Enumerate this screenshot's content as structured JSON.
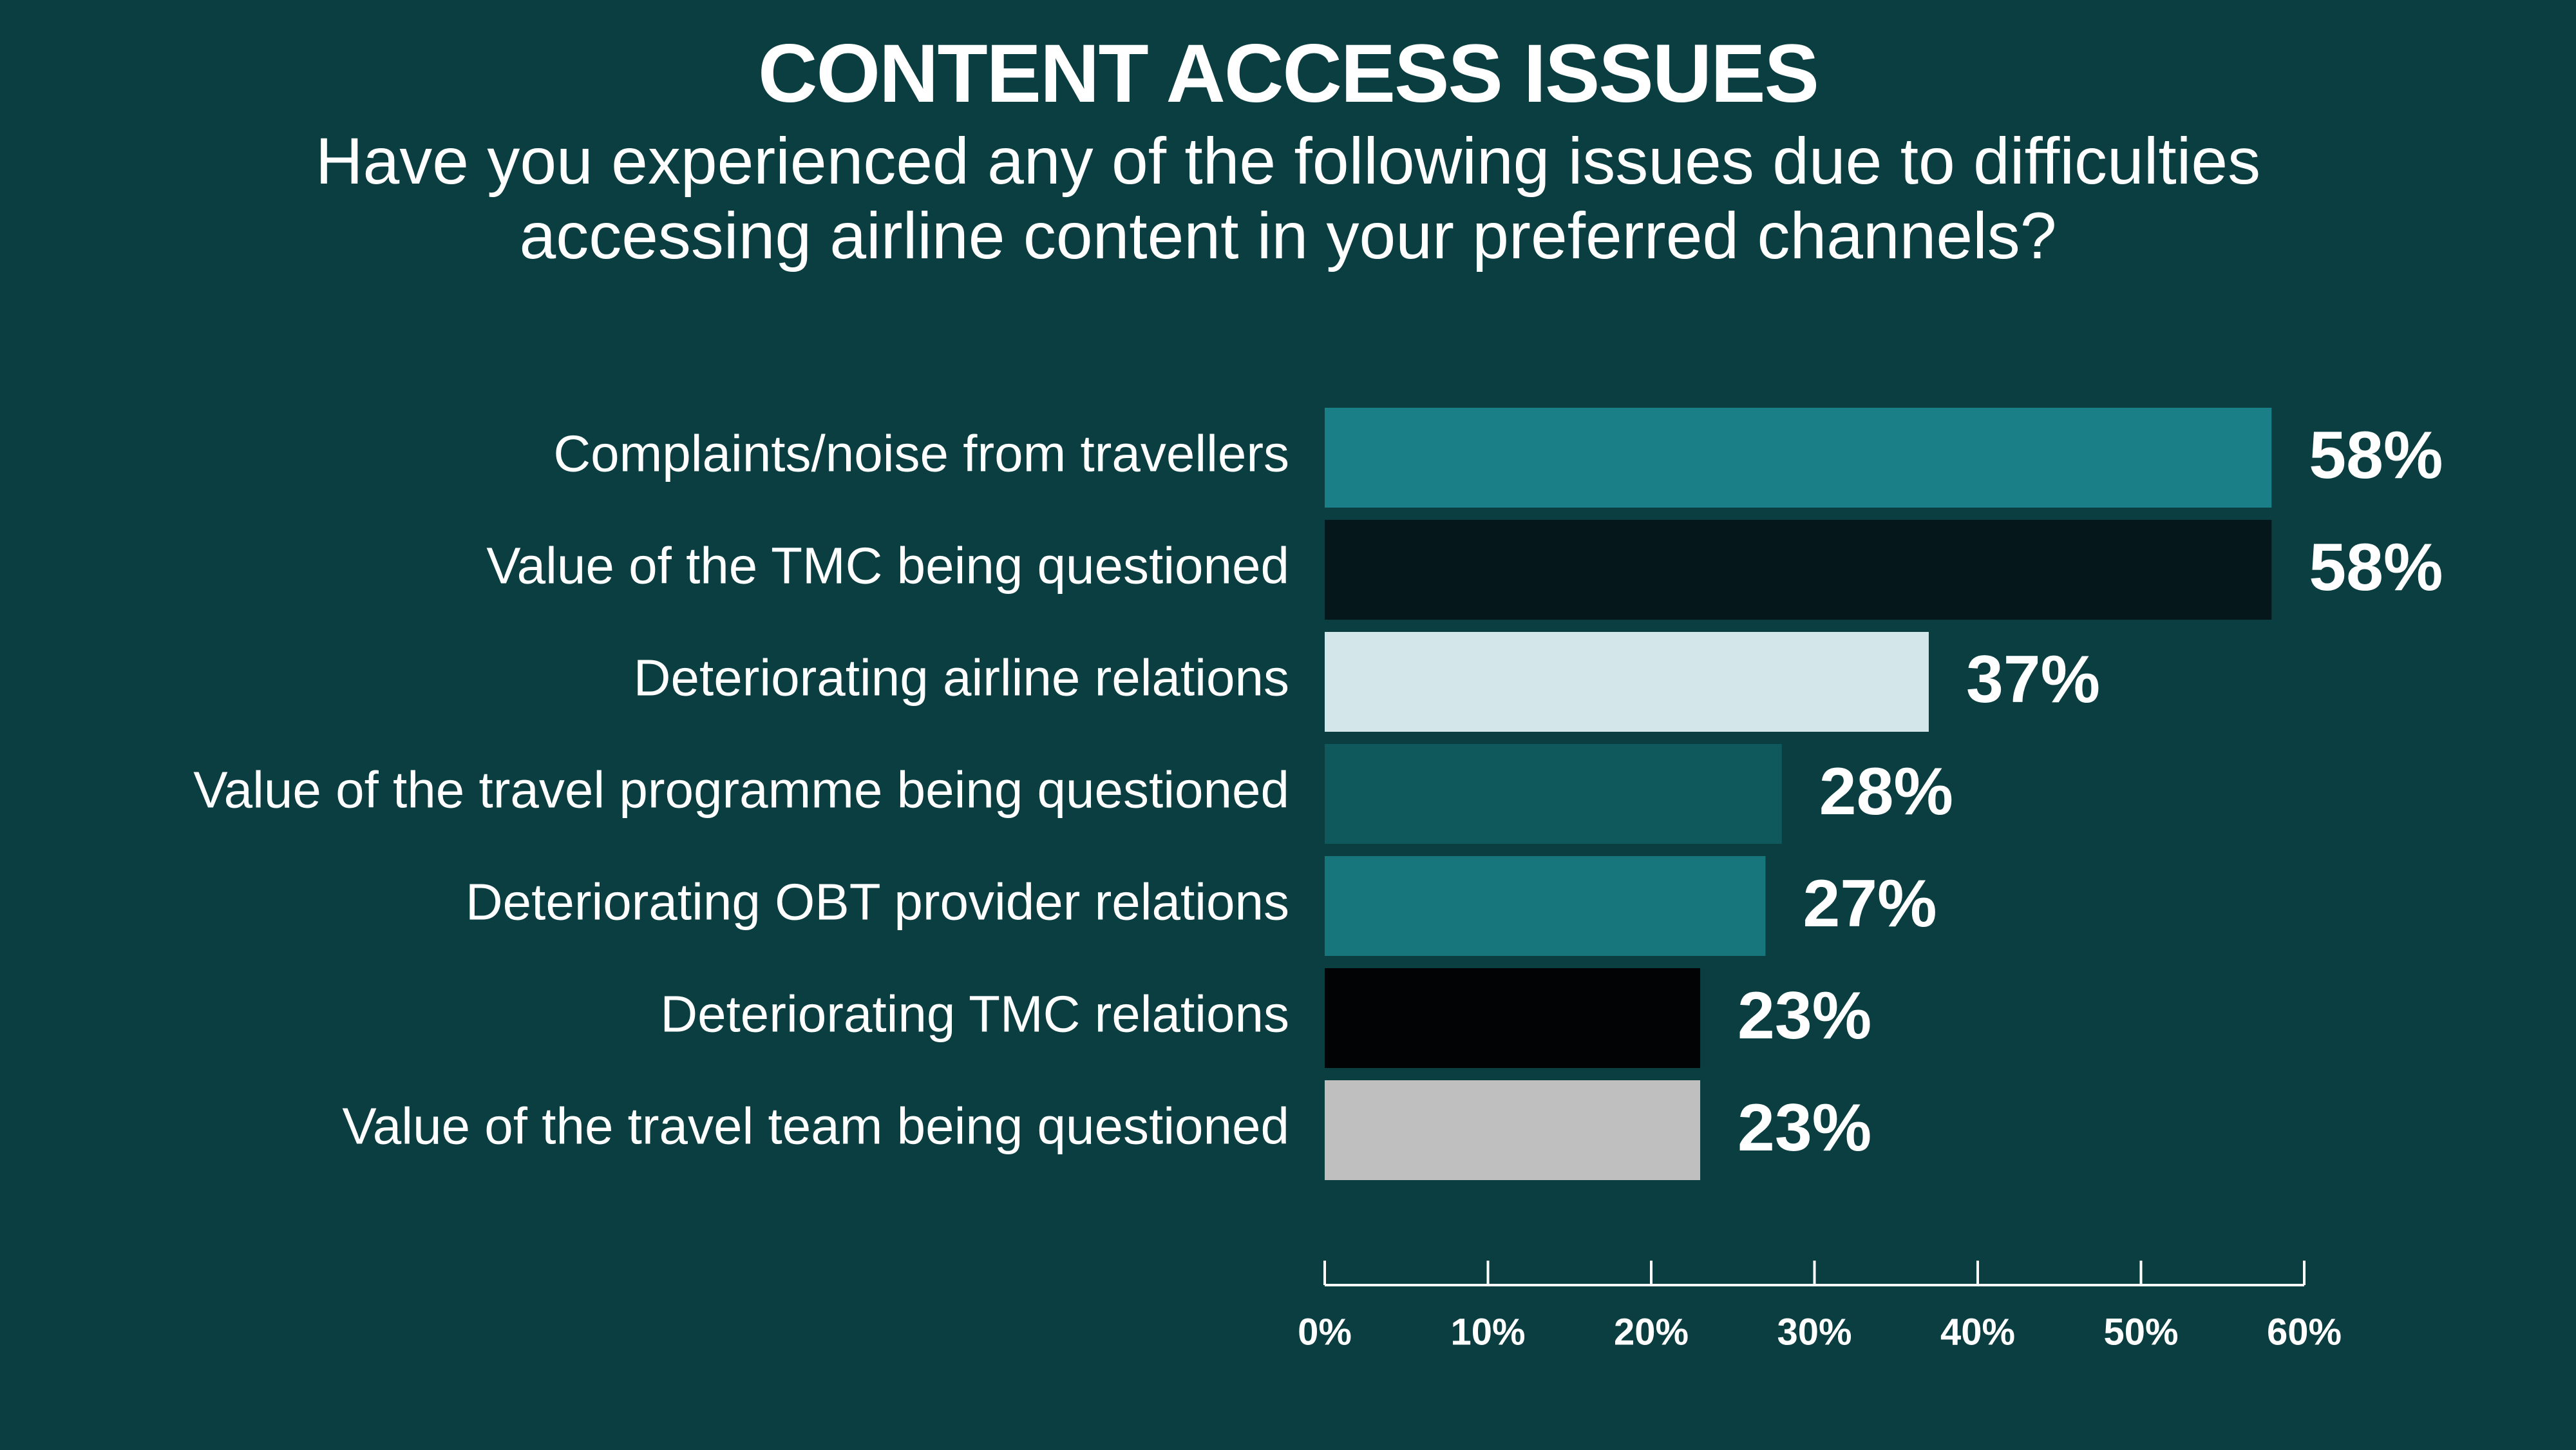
{
  "header": {
    "title": "CONTENT ACCESS ISSUES",
    "subtitle_line1": "Have you experienced any of the following issues due to difficulties",
    "subtitle_line2": "accessing airline content in your preferred channels?"
  },
  "chart_data": {
    "type": "bar",
    "orientation": "horizontal",
    "categories": [
      "Complaints/noise from travellers",
      "Value of the TMC being questioned",
      "Deteriorating airline relations",
      "Value of the travel programme being questioned",
      "Deteriorating OBT provider relations",
      "Deteriorating TMC relations",
      "Value of the travel team being questioned"
    ],
    "values": [
      58,
      58,
      37,
      28,
      27,
      23,
      23
    ],
    "value_labels": [
      "58%",
      "58%",
      "37%",
      "28%",
      "27%",
      "23%",
      "23%"
    ],
    "colors": [
      "#1b7f88",
      "#06171b",
      "#d3e6ea",
      "#0f585c",
      "#17757c",
      "#020304",
      "#bfbfbf"
    ],
    "xlim": [
      0,
      60
    ],
    "x_ticks": [
      0,
      10,
      20,
      30,
      40,
      50,
      60
    ],
    "x_tick_labels": [
      "0%",
      "10%",
      "20%",
      "30%",
      "40%",
      "50%",
      "60%"
    ],
    "grid": false,
    "legend": "none"
  }
}
